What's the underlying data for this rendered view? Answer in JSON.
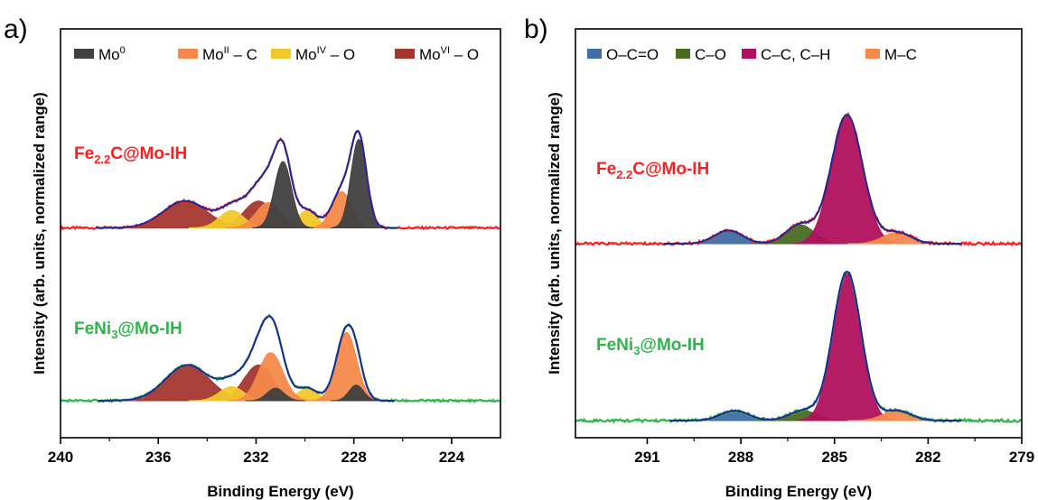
{
  "colors": {
    "mo0": "#404040",
    "mo2": "#f4894a",
    "mo4": "#f2c829",
    "mo6": "#a4362e",
    "oco": "#3f6ea5",
    "co": "#4a6a22",
    "cc": "#b0115e",
    "mc": "#f4894a",
    "env": "#1c2a96",
    "raw_red": "#ff1d1d",
    "raw_green": "#2db54a",
    "label_red": "#ff1d1d",
    "label_green": "#2db54a"
  },
  "chart_data": [
    {
      "type": "area",
      "panel": "a)",
      "xlabel": "Binding Energy (eV)",
      "ylabel": "Intensity (arb. units, normalized range)",
      "xlim": [
        240,
        222
      ],
      "xticks": [
        "240",
        "236",
        "232",
        "228",
        "224"
      ],
      "tick_values": [
        240,
        236,
        232,
        228,
        224
      ],
      "legend_position": "top",
      "legend": [
        {
          "key": "mo0",
          "base": "Mo",
          "sup": "0",
          "tail": ""
        },
        {
          "key": "mo2",
          "base": "Mo",
          "sup": "II",
          "tail": " – C"
        },
        {
          "key": "mo4",
          "base": "Mo",
          "sup": "IV",
          "tail": " – O"
        },
        {
          "key": "mo6",
          "base": "Mo",
          "sup": "VI",
          "tail": " – O"
        }
      ],
      "spectra": [
        {
          "label_main": "Fe",
          "label_sub": "2.2",
          "label_tail": "C@Mo-IH",
          "label_color": "label_red",
          "raw_color": "raw_red",
          "raw_x_range": [
            240,
            222
          ],
          "baseline": 0.02,
          "components": [
            {
              "key": "mo6",
              "center": 234.9,
              "height": 0.17,
              "width": 0.9
            },
            {
              "key": "mo6",
              "center": 231.9,
              "height": 0.17,
              "width": 0.6
            },
            {
              "key": "mo4",
              "center": 233.0,
              "height": 0.11,
              "width": 0.5
            },
            {
              "key": "mo4",
              "center": 229.9,
              "height": 0.11,
              "width": 0.4
            },
            {
              "key": "mo2",
              "center": 231.5,
              "height": 0.16,
              "width": 0.5
            },
            {
              "key": "mo2",
              "center": 228.5,
              "height": 0.23,
              "width": 0.4
            },
            {
              "key": "mo0",
              "center": 230.9,
              "height": 0.42,
              "width": 0.35
            },
            {
              "key": "mo0",
              "center": 227.8,
              "height": 0.56,
              "width": 0.32
            }
          ]
        },
        {
          "label_main": "FeNi",
          "label_sub": "3",
          "label_tail": "@Mo-IH",
          "label_color": "label_green",
          "raw_color": "raw_green",
          "raw_x_range": [
            240,
            222
          ],
          "baseline": 0.0,
          "components": [
            {
              "key": "mo6",
              "center": 234.8,
              "height": 0.23,
              "width": 0.9
            },
            {
              "key": "mo6",
              "center": 231.9,
              "height": 0.23,
              "width": 0.6
            },
            {
              "key": "mo4",
              "center": 233.0,
              "height": 0.09,
              "width": 0.5
            },
            {
              "key": "mo4",
              "center": 229.9,
              "height": 0.08,
              "width": 0.4
            },
            {
              "key": "mo2",
              "center": 231.4,
              "height": 0.31,
              "width": 0.5
            },
            {
              "key": "mo2",
              "center": 228.3,
              "height": 0.44,
              "width": 0.42
            },
            {
              "key": "mo0",
              "center": 231.2,
              "height": 0.08,
              "width": 0.35
            },
            {
              "key": "mo0",
              "center": 227.9,
              "height": 0.1,
              "width": 0.3
            }
          ]
        }
      ]
    },
    {
      "type": "area",
      "panel": "b)",
      "xlabel": "Binding Energy (eV)",
      "ylabel": "Intensity (arb. units, normalized range)",
      "xlim": [
        293.3,
        279
      ],
      "xticks": [
        "291",
        "288",
        "285",
        "282",
        "279"
      ],
      "tick_values": [
        291,
        288,
        285,
        282,
        279
      ],
      "legend_position": "top",
      "legend": [
        {
          "key": "oco",
          "base": "O–C=O",
          "sup": "",
          "tail": ""
        },
        {
          "key": "co",
          "base": "C–O",
          "sup": "",
          "tail": ""
        },
        {
          "key": "cc",
          "base": "C–C, C–H",
          "sup": "",
          "tail": ""
        },
        {
          "key": "mc",
          "base": "M–C",
          "sup": "",
          "tail": ""
        }
      ],
      "spectra": [
        {
          "label_main": "Fe",
          "label_sub": "2.2",
          "label_tail": "C@Mo-IH",
          "label_color": "label_red",
          "raw_color": "raw_red",
          "raw_x_range": [
            293.3,
            279
          ],
          "baseline": 0.0,
          "components": [
            {
              "key": "oco",
              "center": 288.4,
              "height": 0.07,
              "width": 0.45
            },
            {
              "key": "co",
              "center": 286.1,
              "height": 0.1,
              "width": 0.45
            },
            {
              "key": "cc",
              "center": 284.6,
              "height": 0.68,
              "width": 0.5
            },
            {
              "key": "mc",
              "center": 283.0,
              "height": 0.06,
              "width": 0.45
            }
          ]
        },
        {
          "label_main": "FeNi",
          "label_sub": "3",
          "label_tail": "@Mo-IH",
          "label_color": "label_green",
          "raw_color": "raw_green",
          "raw_x_range": [
            293.3,
            279
          ],
          "baseline": 0.0,
          "components": [
            {
              "key": "oco",
              "center": 288.2,
              "height": 0.05,
              "width": 0.45
            },
            {
              "key": "co",
              "center": 286.0,
              "height": 0.05,
              "width": 0.45
            },
            {
              "key": "cc",
              "center": 284.6,
              "height": 0.75,
              "width": 0.45
            },
            {
              "key": "mc",
              "center": 283.0,
              "height": 0.05,
              "width": 0.45
            }
          ]
        }
      ]
    }
  ]
}
